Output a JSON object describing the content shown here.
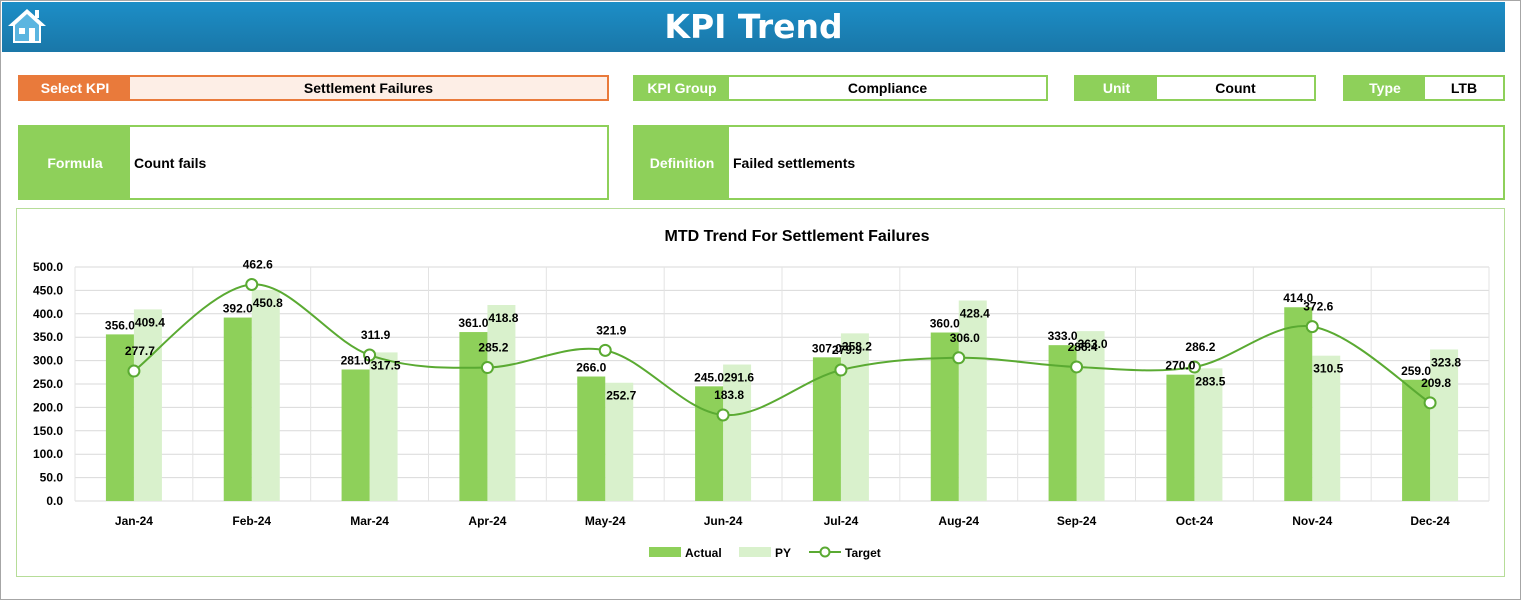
{
  "header": {
    "title": "KPI Trend"
  },
  "select_kpi": {
    "label": "Select KPI",
    "value": "Settlement Failures"
  },
  "kpi_group": {
    "label": "KPI Group",
    "value": "Compliance"
  },
  "unit": {
    "label": "Unit",
    "value": "Count"
  },
  "type": {
    "label": "Type",
    "value": "LTB"
  },
  "formula": {
    "label": "Formula",
    "value": "Count fails"
  },
  "definition": {
    "label": "Definition",
    "value": "Failed settlements"
  },
  "colors": {
    "header": "#1a7fb3",
    "green": "#8ed05a",
    "orange": "#e97a3b",
    "actual": "#8ed05a",
    "py": "#d9f1cc",
    "target": "#5aaa32"
  },
  "chart_data": {
    "type": "bar",
    "title": "MTD Trend For Settlement Failures",
    "categories": [
      "Jan-24",
      "Feb-24",
      "Mar-24",
      "Apr-24",
      "May-24",
      "Jun-24",
      "Jul-24",
      "Aug-24",
      "Sep-24",
      "Oct-24",
      "Nov-24",
      "Dec-24"
    ],
    "ylim": [
      0,
      500
    ],
    "yticks": [
      "500.0",
      "450.0",
      "400.0",
      "350.0",
      "300.0",
      "250.0",
      "200.0",
      "150.0",
      "100.0",
      "50.0",
      "0.0"
    ],
    "grid": true,
    "legend_position": "bottom",
    "series": [
      {
        "name": "Actual",
        "kind": "bar",
        "values": [
          356.0,
          392.0,
          281.0,
          361.0,
          266.0,
          245.0,
          307.0,
          360.0,
          333.0,
          270.0,
          414.0,
          259.0
        ]
      },
      {
        "name": "PY",
        "kind": "bar",
        "values": [
          409.4,
          450.8,
          317.5,
          418.8,
          252.7,
          291.6,
          358.2,
          428.4,
          363.0,
          283.5,
          310.5,
          323.8
        ]
      },
      {
        "name": "Target",
        "kind": "line",
        "values": [
          277.7,
          462.6,
          311.9,
          285.2,
          321.9,
          183.8,
          279.9,
          306.0,
          286.4,
          286.2,
          372.6,
          209.8
        ]
      }
    ]
  }
}
